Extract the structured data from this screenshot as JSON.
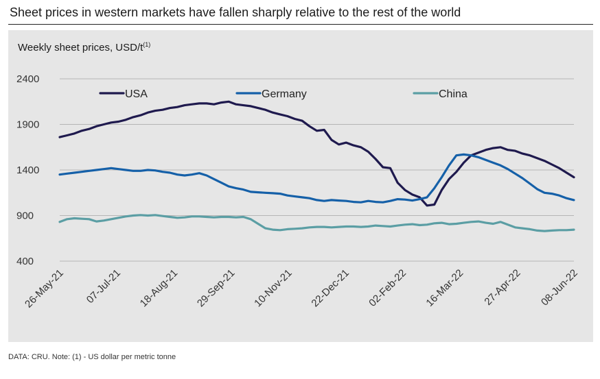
{
  "title": "Sheet prices in western markets have fallen sharply relative to the rest of the world",
  "subtitle": "Weekly sheet prices, USD/t",
  "subtitle_note_mark": "(1)",
  "footer": "DATA: CRU.  Note: (1) - US dollar per metric tonne",
  "chart_data": {
    "type": "line",
    "ylim": [
      400,
      2400
    ],
    "y_ticks": [
      "2400",
      "1900",
      "1400",
      "900",
      "400"
    ],
    "x_ticks": [
      "26-May-21",
      "07-Jul-21",
      "18-Aug-21",
      "29-Sep-21",
      "10-Nov-21",
      "22-Dec-21",
      "02-Feb-22",
      "16-Mar-22",
      "27-Apr-22",
      "08-Jun-22"
    ],
    "grid": true,
    "legend_position": "top",
    "series": [
      {
        "name": "USA",
        "color": "#1f1a4e",
        "values": [
          1760,
          1780,
          1800,
          1830,
          1850,
          1880,
          1900,
          1920,
          1930,
          1950,
          1980,
          2000,
          2030,
          2050,
          2060,
          2080,
          2090,
          2110,
          2120,
          2130,
          2130,
          2120,
          2140,
          2150,
          2120,
          2110,
          2100,
          2080,
          2060,
          2030,
          2010,
          1990,
          1960,
          1940,
          1880,
          1830,
          1840,
          1730,
          1680,
          1700,
          1670,
          1650,
          1600,
          1520,
          1430,
          1420,
          1260,
          1180,
          1130,
          1100,
          1010,
          1020,
          1180,
          1300,
          1380,
          1480,
          1560,
          1590,
          1620,
          1640,
          1650,
          1620,
          1610,
          1580,
          1560,
          1530,
          1500,
          1460,
          1420,
          1370,
          1320
        ]
      },
      {
        "name": "Germany",
        "color": "#1560a8",
        "values": [
          1350,
          1360,
          1370,
          1380,
          1390,
          1400,
          1410,
          1420,
          1410,
          1400,
          1390,
          1390,
          1400,
          1395,
          1380,
          1370,
          1350,
          1340,
          1350,
          1365,
          1340,
          1300,
          1260,
          1220,
          1200,
          1185,
          1160,
          1155,
          1150,
          1145,
          1140,
          1120,
          1110,
          1100,
          1090,
          1070,
          1060,
          1070,
          1065,
          1060,
          1050,
          1045,
          1060,
          1050,
          1045,
          1060,
          1080,
          1075,
          1065,
          1080,
          1100,
          1200,
          1320,
          1450,
          1560,
          1570,
          1560,
          1540,
          1510,
          1480,
          1450,
          1410,
          1360,
          1310,
          1250,
          1190,
          1150,
          1140,
          1120,
          1090,
          1070
        ]
      },
      {
        "name": "China",
        "color": "#5b9ea4",
        "values": [
          830,
          860,
          870,
          865,
          860,
          835,
          845,
          860,
          875,
          890,
          900,
          905,
          900,
          905,
          895,
          885,
          875,
          880,
          890,
          890,
          885,
          880,
          885,
          885,
          880,
          885,
          860,
          810,
          760,
          745,
          740,
          750,
          755,
          760,
          770,
          775,
          775,
          770,
          775,
          780,
          780,
          775,
          780,
          790,
          785,
          780,
          790,
          800,
          805,
          795,
          800,
          815,
          820,
          805,
          810,
          820,
          830,
          835,
          820,
          810,
          830,
          800,
          770,
          760,
          750,
          735,
          730,
          735,
          740,
          740,
          745
        ]
      }
    ]
  }
}
